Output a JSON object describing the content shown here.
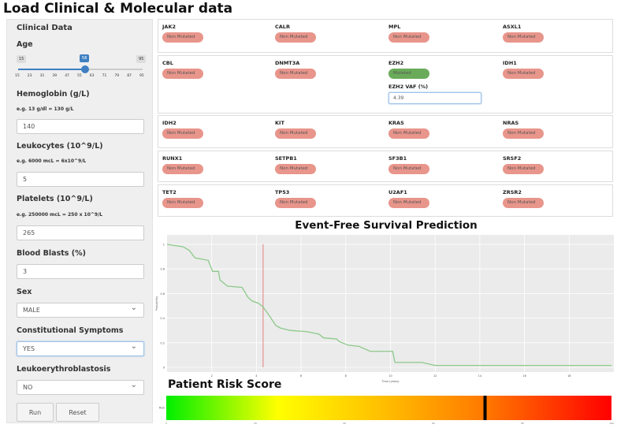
{
  "title": "Load Clinical & Molecular data",
  "sidebar": {
    "heading": "Clinical Data",
    "age": {
      "label": "Age",
      "min": 15,
      "max": 95,
      "value": 58,
      "ticks": [
        "15",
        "23",
        "31",
        "39",
        "47",
        "55",
        "63",
        "71",
        "79",
        "87",
        "95"
      ]
    },
    "hemoglobin": {
      "label": "Hemoglobin (g/L)",
      "hint": "e.g. 13 g/dl = 130 g/L",
      "value": "140"
    },
    "leukocytes": {
      "label": "Leukocytes (10^9/L)",
      "hint": "e.g. 6000 mcL = 6x10^9/L",
      "value": "5"
    },
    "platelets": {
      "label": "Platelets (10^9/L)",
      "hint": "e.g. 250000 mcL = 250 x 10^9/L",
      "value": "265"
    },
    "blasts": {
      "label": "Blood Blasts (%)",
      "value": "3"
    },
    "sex": {
      "label": "Sex",
      "value": "MALE"
    },
    "symptoms": {
      "label": "Constitutional Symptoms",
      "value": "YES"
    },
    "leuko": {
      "label": "Leukoerythroblastosis",
      "value": "NO"
    },
    "run": "Run",
    "reset": "Reset"
  },
  "genes": [
    [
      {
        "name": "JAK2",
        "status": "Non Mutated"
      },
      {
        "name": "CALR",
        "status": "Non Mutated"
      },
      {
        "name": "MPL",
        "status": "Non Mutated"
      },
      {
        "name": "ASXL1",
        "status": "Non Mutated"
      }
    ],
    [
      {
        "name": "CBL",
        "status": "Non Mutated"
      },
      {
        "name": "DNMT3A",
        "status": "Non Mutated"
      },
      {
        "name": "EZH2",
        "status": "Mutated"
      },
      {
        "name": "IDH1",
        "status": "Non Mutated"
      }
    ],
    [
      {
        "name": "IDH2",
        "status": "Non Mutated"
      },
      {
        "name": "KIT",
        "status": "Non Mutated"
      },
      {
        "name": "KRAS",
        "status": "Non Mutated"
      },
      {
        "name": "NRAS",
        "status": "Non Mutated"
      }
    ],
    [
      {
        "name": "RUNX1",
        "status": "Non Mutated"
      },
      {
        "name": "SETPB1",
        "status": "Non Mutated"
      },
      {
        "name": "SF3B1",
        "status": "Non Mutated"
      },
      {
        "name": "SRSF2",
        "status": "Non Mutated"
      }
    ],
    [
      {
        "name": "TET2",
        "status": "Non Mutated"
      },
      {
        "name": "TP53",
        "status": "Non Mutated"
      },
      {
        "name": "U2AF1",
        "status": "Non Mutated"
      },
      {
        "name": "ZRSR2",
        "status": "Non Mutated"
      }
    ]
  ],
  "vaf": {
    "label": "EZH2 VAF (%)",
    "value": "4.39"
  },
  "chart_data": [
    {
      "type": "line",
      "title": "Event-Free Survival Prediction",
      "xlabel": "Time (years)",
      "ylabel": "Probability",
      "xlim": [
        0,
        20
      ],
      "ylim": [
        0,
        1
      ],
      "xticks": [
        "2",
        "4",
        "6",
        "8",
        "10",
        "12",
        "14",
        "16",
        "18"
      ],
      "yticks": [
        "0",
        "0.2",
        "0.4",
        "0.6",
        "0.8",
        "1"
      ],
      "vline": 4.3,
      "series": [
        {
          "name": "survival",
          "color": "#8cc98a",
          "x": [
            0,
            0.72,
            1.0,
            1.25,
            1.84,
            2.04,
            2.3,
            2.37,
            2.7,
            3.36,
            3.62,
            3.8,
            4.1,
            4.3,
            4.54,
            4.87,
            5.07,
            5.5,
            6.25,
            6.8,
            7.0,
            7.6,
            7.7,
            8.1,
            8.6,
            9.1,
            10.1,
            10.2,
            11.4,
            12.0,
            19.9
          ],
          "y": [
            1,
            0.98,
            0.95,
            0.89,
            0.87,
            0.78,
            0.78,
            0.71,
            0.66,
            0.65,
            0.57,
            0.54,
            0.52,
            0.49,
            0.43,
            0.34,
            0.32,
            0.3,
            0.29,
            0.27,
            0.24,
            0.23,
            0.21,
            0.18,
            0.17,
            0.13,
            0.13,
            0.04,
            0.04,
            0.015,
            0.015
          ]
        }
      ]
    },
    {
      "type": "heatmap",
      "title": "Patient Risk Score",
      "ylabel": "Risk",
      "xlim": [
        0,
        100
      ],
      "xticks": [
        "0",
        "20",
        "40",
        "60",
        "80",
        "100"
      ],
      "marker": 71.6
    }
  ]
}
